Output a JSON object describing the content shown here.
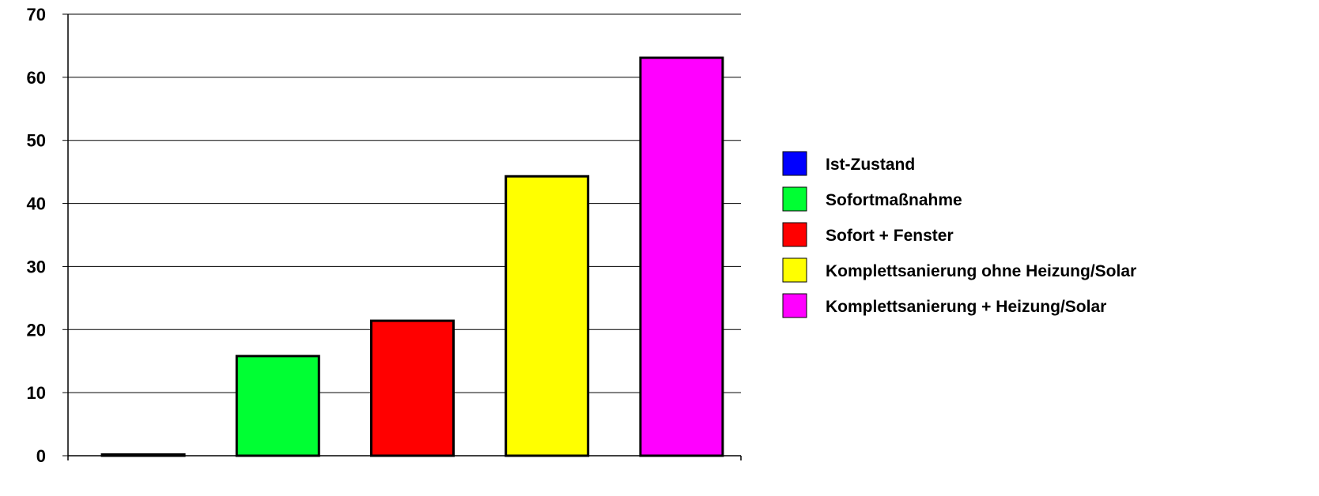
{
  "chart_data": {
    "type": "bar",
    "title": "",
    "xlabel": "",
    "ylabel": "",
    "ylim": [
      0,
      70
    ],
    "yticks": [
      0,
      10,
      20,
      30,
      40,
      50,
      60,
      70
    ],
    "grid": true,
    "legend_position": "right",
    "series": [
      {
        "name": "Ist-Zustand",
        "value": 0.2,
        "color": "#0000FF"
      },
      {
        "name": "Sofortmaßnahme",
        "value": 15.8,
        "color": "#00FF33"
      },
      {
        "name": "Sofort + Fenster",
        "value": 21.4,
        "color": "#FF0000"
      },
      {
        "name": "Komplettsanierung ohne Heizung/Solar",
        "value": 44.3,
        "color": "#FFFF00"
      },
      {
        "name": "Komplettsanierung + Heizung/Solar",
        "value": 63.1,
        "color": "#FF00FF"
      }
    ]
  }
}
